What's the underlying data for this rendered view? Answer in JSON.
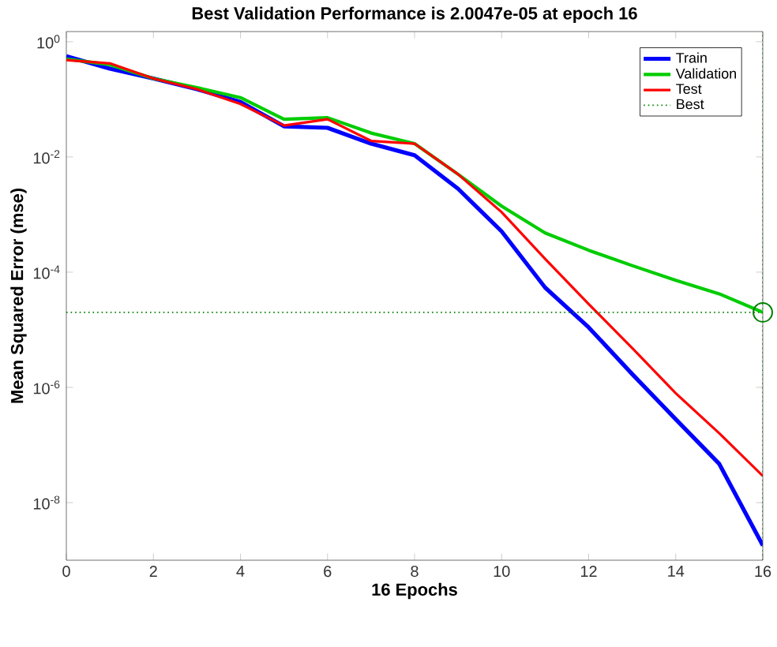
{
  "chart_data": {
    "type": "line",
    "title": "Best Validation Performance is 2.0047e-05 at epoch 16",
    "xlabel": "16 Epochs",
    "ylabel": "Mean Squared Error  (mse)",
    "x": [
      0,
      1,
      2,
      3,
      4,
      5,
      6,
      7,
      8,
      9,
      10,
      11,
      12,
      13,
      14,
      15,
      16
    ],
    "series": [
      {
        "name": "Train",
        "color": "#0000ff",
        "values": [
          0.56,
          0.34,
          0.23,
          0.15,
          0.09,
          0.034,
          0.032,
          0.017,
          0.0107,
          0.0028,
          0.00051,
          5.4e-05,
          1.1e-05,
          1.7e-06,
          2.8e-07,
          4.7e-08,
          1.8e-09
        ]
      },
      {
        "name": "Validation",
        "color": "#00cc00",
        "values": [
          0.5,
          0.4,
          0.23,
          0.16,
          0.107,
          0.045,
          0.048,
          0.026,
          0.017,
          0.005,
          0.0014,
          0.00048,
          0.00024,
          0.00013,
          7.2e-05,
          4.2e-05,
          2.0047e-05
        ]
      },
      {
        "name": "Test",
        "color": "#ff0000",
        "values": [
          0.48,
          0.42,
          0.23,
          0.15,
          0.083,
          0.035,
          0.045,
          0.019,
          0.017,
          0.005,
          0.0011,
          0.00017,
          2.8e-05,
          4.8e-06,
          7.9e-07,
          1.6e-07,
          2.9e-08
        ]
      },
      {
        "name": "Best",
        "type": "scatter",
        "x": [
          16
        ],
        "color": "#008000",
        "marker": "circle",
        "line_style": "dotted",
        "values": [
          2.0047e-05
        ]
      }
    ],
    "xlim": [
      0,
      16
    ],
    "xticks": [
      0,
      2,
      4,
      6,
      8,
      10,
      12,
      14,
      16
    ],
    "ylim": [
      1e-09,
      1.5
    ],
    "log": "y",
    "yticks": [
      {
        "value": 1,
        "label": "10$^{0}$"
      },
      {
        "value": 0.01,
        "label": "10$^{-2}$"
      },
      {
        "value": 0.0001,
        "label": "10$^{-4}$"
      },
      {
        "value": 1e-06,
        "label": "10$^{-6}$"
      },
      {
        "value": 1e-08,
        "label": "10$^{-8}$"
      }
    ],
    "ref_lines": [
      {
        "axis": "x",
        "value": 16,
        "color": "#008000",
        "line_style": "dotted"
      },
      {
        "axis": "y",
        "value": 2.0047e-05,
        "color": "#008000",
        "line_style": "dotted"
      }
    ],
    "legend": "top right",
    "grid": false
  }
}
